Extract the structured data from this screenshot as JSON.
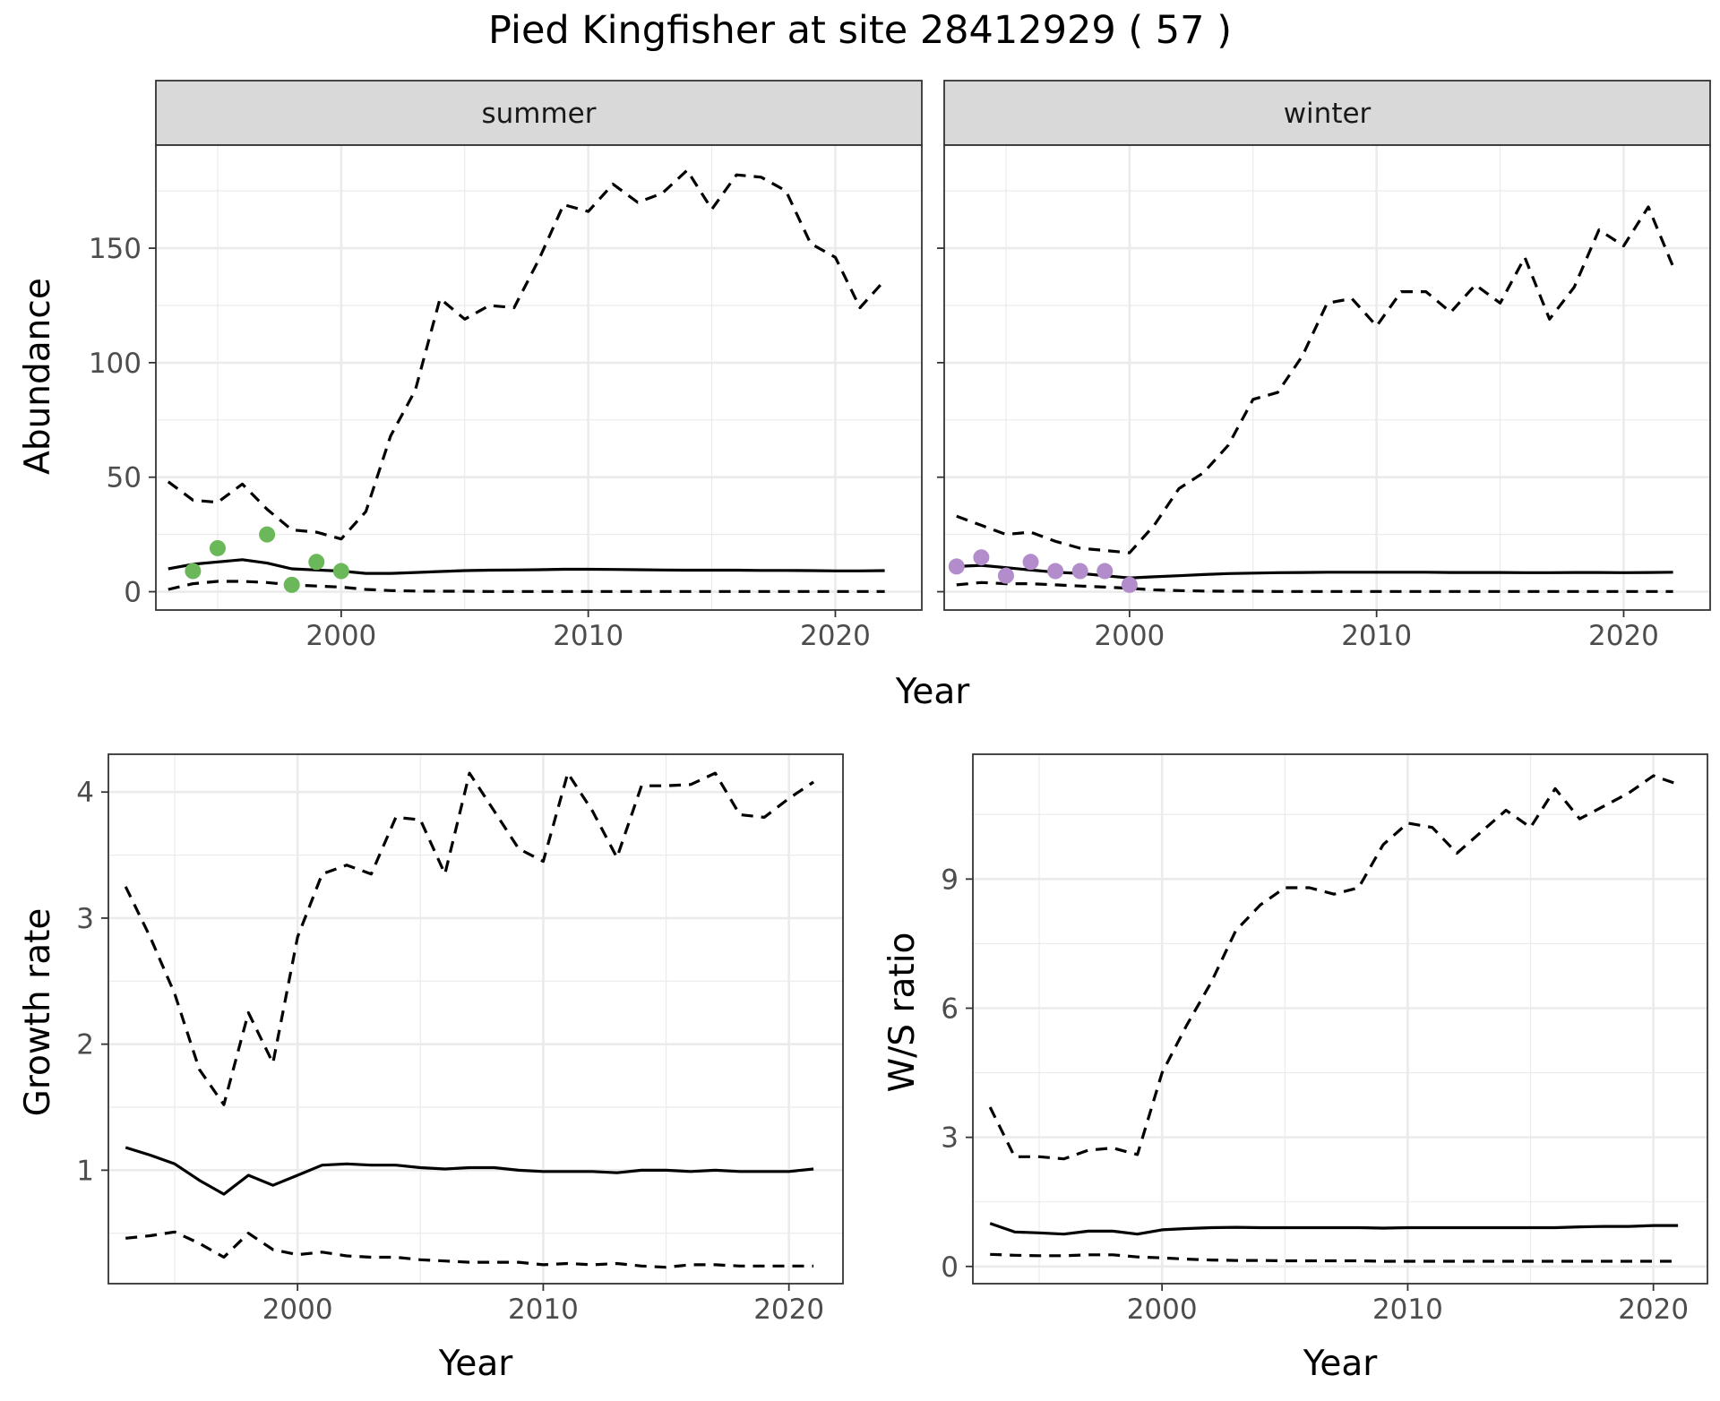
{
  "title": "Pied Kingfisher at site 28412929 ( 57 )",
  "colors": {
    "summer_points": "#6ab85a",
    "winter_points": "#b28ccb",
    "line": "#000000",
    "strip_fill": "#d9d9d9",
    "grid": "#ebebeb"
  },
  "abundance_shared": {
    "xlabel": "Year",
    "ylabel": "Abundance"
  },
  "chart_data": [
    {
      "id": "summer",
      "type": "line",
      "panel_strip": "summer",
      "xlabel": "",
      "ylabel": "Abundance",
      "xlim": [
        1992.5,
        2023.5
      ],
      "ylim": [
        -8,
        195
      ],
      "xticks": [
        2000,
        2010,
        2020
      ],
      "yticks": [
        0,
        50,
        100,
        150
      ],
      "show_y_ticklabels": true,
      "grid": true,
      "series": [
        {
          "role": "upper",
          "style": "dashed",
          "x": [
            1993,
            1994,
            1995,
            1996,
            1997,
            1998,
            1999,
            2000,
            2001,
            2002,
            2003,
            2004,
            2005,
            2006,
            2007,
            2008,
            2009,
            2010,
            2011,
            2012,
            2013,
            2014,
            2015,
            2016,
            2017,
            2018,
            2019,
            2020,
            2021,
            2022
          ],
          "y": [
            48,
            40,
            39,
            47,
            36,
            27,
            26,
            23,
            35,
            68,
            88,
            128,
            119,
            125,
            124,
            145,
            169,
            166,
            178,
            170,
            174,
            184,
            167,
            182,
            181,
            175,
            152,
            146,
            124,
            136
          ]
        },
        {
          "role": "mean",
          "style": "solid",
          "x": [
            1993,
            1994,
            1995,
            1996,
            1997,
            1998,
            1999,
            2000,
            2001,
            2002,
            2003,
            2004,
            2005,
            2006,
            2007,
            2008,
            2009,
            2010,
            2011,
            2012,
            2013,
            2014,
            2015,
            2016,
            2017,
            2018,
            2019,
            2020,
            2021,
            2022
          ],
          "y": [
            10,
            12,
            13,
            14,
            12.5,
            10,
            9.5,
            9,
            8,
            8,
            8.4,
            8.8,
            9.2,
            9.4,
            9.5,
            9.6,
            9.8,
            9.8,
            9.7,
            9.6,
            9.5,
            9.4,
            9.4,
            9.4,
            9.3,
            9.3,
            9.2,
            9.1,
            9.1,
            9.2
          ]
        },
        {
          "role": "lower",
          "style": "dashed",
          "x": [
            1993,
            1994,
            1995,
            1996,
            1997,
            1998,
            1999,
            2000,
            2001,
            2002,
            2003,
            2004,
            2005,
            2006,
            2007,
            2008,
            2009,
            2010,
            2011,
            2012,
            2013,
            2014,
            2015,
            2016,
            2017,
            2018,
            2019,
            2020,
            2021,
            2022
          ],
          "y": [
            1,
            3.5,
            4.5,
            4.5,
            4,
            3,
            2.5,
            2,
            1,
            0.5,
            0.3,
            0.2,
            0.2,
            0.1,
            0.1,
            0.1,
            0.1,
            0.1,
            0.1,
            0.1,
            0.1,
            0.1,
            0.1,
            0.1,
            0.1,
            0.1,
            0.1,
            0.1,
            0.1,
            0.1
          ]
        }
      ],
      "points": {
        "x": [
          1994,
          1995,
          1997,
          1998,
          1999,
          2000
        ],
        "y": [
          9,
          19,
          25,
          3,
          13,
          9
        ]
      }
    },
    {
      "id": "winter",
      "type": "line",
      "panel_strip": "winter",
      "xlabel": "",
      "ylabel": "",
      "xlim": [
        1992.5,
        2023.5
      ],
      "ylim": [
        -8,
        195
      ],
      "xticks": [
        2000,
        2010,
        2020
      ],
      "yticks": [
        0,
        50,
        100,
        150
      ],
      "show_y_ticklabels": false,
      "grid": true,
      "series": [
        {
          "role": "upper",
          "style": "dashed",
          "x": [
            1993,
            1994,
            1995,
            1996,
            1997,
            1998,
            1999,
            2000,
            2001,
            2002,
            2003,
            2004,
            2005,
            2006,
            2007,
            2008,
            2009,
            2010,
            2011,
            2012,
            2013,
            2014,
            2015,
            2016,
            2017,
            2018,
            2019,
            2020,
            2021,
            2022
          ],
          "y": [
            33,
            29,
            25,
            26,
            22,
            19,
            18,
            17,
            29,
            45,
            52,
            64,
            84,
            87,
            103,
            126,
            128,
            116,
            131,
            131,
            122,
            134,
            126,
            146,
            119,
            133,
            158,
            151,
            168,
            142
          ]
        },
        {
          "role": "mean",
          "style": "solid",
          "x": [
            1993,
            1994,
            1995,
            1996,
            1997,
            1998,
            1999,
            2000,
            2001,
            2002,
            2003,
            2004,
            2005,
            2006,
            2007,
            2008,
            2009,
            2010,
            2011,
            2012,
            2013,
            2014,
            2015,
            2016,
            2017,
            2018,
            2019,
            2020,
            2021,
            2022
          ],
          "y": [
            11,
            11.5,
            10.5,
            9.5,
            8.5,
            8,
            7,
            6,
            6.5,
            7,
            7.5,
            7.9,
            8.1,
            8.3,
            8.4,
            8.5,
            8.5,
            8.5,
            8.5,
            8.5,
            8.4,
            8.4,
            8.4,
            8.3,
            8.3,
            8.4,
            8.4,
            8.3,
            8.4,
            8.5
          ]
        },
        {
          "role": "lower",
          "style": "dashed",
          "x": [
            1993,
            1994,
            1995,
            1996,
            1997,
            1998,
            1999,
            2000,
            2001,
            2002,
            2003,
            2004,
            2005,
            2006,
            2007,
            2008,
            2009,
            2010,
            2011,
            2012,
            2013,
            2014,
            2015,
            2016,
            2017,
            2018,
            2019,
            2020,
            2021,
            2022
          ],
          "y": [
            3,
            4,
            3.5,
            3.5,
            3,
            2.5,
            2,
            1.5,
            0.8,
            0.5,
            0.3,
            0.2,
            0.2,
            0.1,
            0.1,
            0.1,
            0.1,
            0.1,
            0.1,
            0.1,
            0.1,
            0.1,
            0.1,
            0.1,
            0.1,
            0.1,
            0.1,
            0.1,
            0.1,
            0.1
          ]
        }
      ],
      "points": {
        "x": [
          1993,
          1994,
          1995,
          1996,
          1997,
          1998,
          1999,
          2000
        ],
        "y": [
          11,
          15,
          7,
          13,
          9,
          9,
          9,
          3
        ]
      }
    },
    {
      "id": "growth",
      "type": "line",
      "xlabel": "Year",
      "ylabel": "Growth rate",
      "xlim": [
        1992.3,
        2022.2
      ],
      "ylim": [
        0.1,
        4.3
      ],
      "xticks": [
        2000,
        2010,
        2020
      ],
      "yticks": [
        1,
        2,
        3,
        4
      ],
      "show_y_ticklabels": true,
      "grid": true,
      "series": [
        {
          "role": "upper",
          "style": "dashed",
          "x": [
            1993,
            1994,
            1995,
            1996,
            1997,
            1998,
            1999,
            2000,
            2001,
            2002,
            2003,
            2004,
            2005,
            2006,
            2007,
            2008,
            2009,
            2010,
            2011,
            2012,
            2013,
            2014,
            2015,
            2016,
            2017,
            2018,
            2019,
            2020,
            2021
          ],
          "y": [
            3.25,
            2.85,
            2.4,
            1.8,
            1.52,
            2.25,
            1.85,
            2.85,
            3.35,
            3.42,
            3.35,
            3.8,
            3.78,
            3.35,
            4.15,
            3.85,
            3.55,
            3.45,
            4.15,
            3.85,
            3.48,
            4.05,
            4.05,
            4.06,
            4.15,
            3.82,
            3.8,
            3.95,
            4.08
          ]
        },
        {
          "role": "mean",
          "style": "solid",
          "x": [
            1993,
            1994,
            1995,
            1996,
            1997,
            1998,
            1999,
            2000,
            2001,
            2002,
            2003,
            2004,
            2005,
            2006,
            2007,
            2008,
            2009,
            2010,
            2011,
            2012,
            2013,
            2014,
            2015,
            2016,
            2017,
            2018,
            2019,
            2020,
            2021
          ],
          "y": [
            1.18,
            1.12,
            1.05,
            0.92,
            0.81,
            0.96,
            0.88,
            0.96,
            1.04,
            1.05,
            1.04,
            1.04,
            1.02,
            1.01,
            1.02,
            1.02,
            1.0,
            0.99,
            0.99,
            0.99,
            0.98,
            1.0,
            1.0,
            0.99,
            1.0,
            0.99,
            0.99,
            0.99,
            1.01
          ]
        },
        {
          "role": "lower",
          "style": "dashed",
          "x": [
            1993,
            1994,
            1995,
            1996,
            1997,
            1998,
            1999,
            2000,
            2001,
            2002,
            2003,
            2004,
            2005,
            2006,
            2007,
            2008,
            2009,
            2010,
            2011,
            2012,
            2013,
            2014,
            2015,
            2016,
            2017,
            2018,
            2019,
            2020,
            2021
          ],
          "y": [
            0.46,
            0.48,
            0.51,
            0.42,
            0.31,
            0.5,
            0.37,
            0.33,
            0.35,
            0.32,
            0.31,
            0.31,
            0.29,
            0.28,
            0.27,
            0.27,
            0.27,
            0.25,
            0.26,
            0.25,
            0.26,
            0.24,
            0.23,
            0.25,
            0.25,
            0.24,
            0.24,
            0.24,
            0.24
          ]
        }
      ]
    },
    {
      "id": "ratio",
      "type": "line",
      "xlabel": "Year",
      "ylabel": "W/S ratio",
      "xlim": [
        1992.3,
        2022.2
      ],
      "ylim": [
        -0.4,
        11.9
      ],
      "xticks": [
        2000,
        2010,
        2020
      ],
      "yticks": [
        0,
        3,
        6,
        9
      ],
      "show_y_ticklabels": true,
      "grid": true,
      "series": [
        {
          "role": "upper",
          "style": "dashed",
          "x": [
            1993,
            1994,
            1995,
            1996,
            1997,
            1998,
            1999,
            2000,
            2001,
            2002,
            2003,
            2004,
            2005,
            2006,
            2007,
            2008,
            2009,
            2010,
            2011,
            2012,
            2013,
            2014,
            2015,
            2016,
            2017,
            2018,
            2019,
            2020,
            2021
          ],
          "y": [
            3.7,
            2.55,
            2.55,
            2.5,
            2.7,
            2.75,
            2.6,
            4.5,
            5.6,
            6.6,
            7.8,
            8.4,
            8.8,
            8.8,
            8.65,
            8.8,
            9.8,
            10.3,
            10.2,
            9.6,
            10.1,
            10.6,
            10.2,
            11.1,
            10.4,
            10.7,
            11.0,
            11.4,
            11.2
          ]
        },
        {
          "role": "mean",
          "style": "solid",
          "x": [
            1993,
            1994,
            1995,
            1996,
            1997,
            1998,
            1999,
            2000,
            2001,
            2002,
            2003,
            2004,
            2005,
            2006,
            2007,
            2008,
            2009,
            2010,
            2011,
            2012,
            2013,
            2014,
            2015,
            2016,
            2017,
            2018,
            2019,
            2020,
            2021
          ],
          "y": [
            1.0,
            0.8,
            0.78,
            0.75,
            0.82,
            0.82,
            0.75,
            0.85,
            0.88,
            0.9,
            0.91,
            0.9,
            0.9,
            0.9,
            0.9,
            0.9,
            0.89,
            0.9,
            0.9,
            0.9,
            0.9,
            0.9,
            0.9,
            0.9,
            0.92,
            0.93,
            0.93,
            0.95,
            0.95
          ]
        },
        {
          "role": "lower",
          "style": "dashed",
          "x": [
            1993,
            1994,
            1995,
            1996,
            1997,
            1998,
            1999,
            2000,
            2001,
            2002,
            2003,
            2004,
            2005,
            2006,
            2007,
            2008,
            2009,
            2010,
            2011,
            2012,
            2013,
            2014,
            2015,
            2016,
            2017,
            2018,
            2019,
            2020,
            2021
          ],
          "y": [
            0.28,
            0.26,
            0.25,
            0.25,
            0.27,
            0.27,
            0.22,
            0.2,
            0.17,
            0.15,
            0.14,
            0.14,
            0.13,
            0.13,
            0.13,
            0.13,
            0.12,
            0.12,
            0.12,
            0.12,
            0.12,
            0.12,
            0.12,
            0.12,
            0.12,
            0.12,
            0.12,
            0.12,
            0.12
          ]
        }
      ]
    }
  ]
}
